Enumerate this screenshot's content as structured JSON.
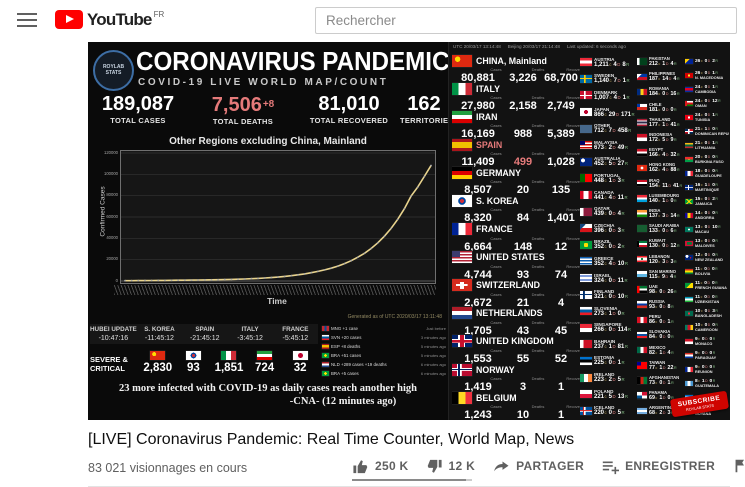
{
  "header": {
    "brand": "YouTube",
    "region": "FR",
    "search_placeholder": "Rechercher"
  },
  "dashboard": {
    "logo": "ROYLAB STATS",
    "title": "CORONAVIRUS PANDEMIC",
    "subtitle": "COVID-19 LIVE WORLD MAP/COUNT",
    "stats": [
      {
        "value": "189,087",
        "label": "TOTAL CASES"
      },
      {
        "value": "7,506",
        "delta": "+8",
        "label": "TOTAL DEATHS",
        "red": true
      },
      {
        "value": "81,010",
        "label": "TOTAL RECOVERED"
      },
      {
        "value": "162",
        "label": "TERRITORIES"
      }
    ],
    "generated": "Generated as of UTC 2020/03/17 13:11:48",
    "countdown": [
      {
        "name": "HUBEI UPDATE",
        "time": "-10:47:16"
      },
      {
        "name": "S. KOREA",
        "time": "-11:45:12"
      },
      {
        "name": "SPAIN",
        "time": "-21:45:12"
      },
      {
        "name": "ITALY",
        "time": "-3:45:12"
      },
      {
        "name": "FRANCE",
        "time": "-5:45:12"
      }
    ],
    "severe_label": "SEVERE & CRITICAL",
    "severe": [
      {
        "flag": "cn",
        "value": "2,830"
      },
      {
        "flag": "kr",
        "value": "93"
      },
      {
        "flag": "it",
        "value": "1,851"
      },
      {
        "flag": "ir",
        "value": "724"
      },
      {
        "flag": "jp",
        "value": "32"
      }
    ],
    "feed": [
      {
        "flag": "mn",
        "text": "MNG +1 case",
        "time": "Just before"
      },
      {
        "flag": "si",
        "text": "SVN +20 cases",
        "time": "3 minutes ago"
      },
      {
        "flag": "es",
        "text": "ESP +8 deaths",
        "time": "5 minutes ago"
      },
      {
        "flag": "br",
        "text": "BRA +51 cases",
        "time": "5 minutes ago"
      },
      {
        "flag": "nl",
        "text": "NLD +289 cases +19 deaths",
        "time": "6 minutes ago"
      },
      {
        "flag": "br",
        "text": "BRA +5 cases",
        "time": "6 minutes ago"
      }
    ],
    "ticker": [
      "23 more infected with COVID-19 as daily cases reach another high",
      "-CNA- (12 minutes ago)"
    ]
  },
  "panel": {
    "utc": "UTC 20/03/17 13:14:48",
    "beijing": "Beijing 20/03/17 21:14:48",
    "updated": "Last updated: 6 seconds ago",
    "headers": [
      "Cases",
      "Deaths",
      "Recovered"
    ],
    "major": [
      {
        "flag": "cn",
        "name": "CHINA, Mainland",
        "cases": "80,881",
        "deaths": "3,226",
        "recovered": "68,700"
      },
      {
        "flag": "it",
        "name": "ITALY",
        "cases": "27,980",
        "deaths": "2,158",
        "recovered": "2,749"
      },
      {
        "flag": "ir",
        "name": "IRAN",
        "cases": "16,169",
        "deaths": "988",
        "recovered": "5,389"
      },
      {
        "flag": "es",
        "name": "SPAIN",
        "cases": "11,409",
        "deaths": "499",
        "recovered": "1,028",
        "highlight": true
      },
      {
        "flag": "de",
        "name": "GERMANY",
        "cases": "8,507",
        "deaths": "20",
        "recovered": "135"
      },
      {
        "flag": "kr",
        "name": "S. KOREA",
        "cases": "8,320",
        "deaths": "84",
        "recovered": "1,401"
      },
      {
        "flag": "fr",
        "name": "FRANCE",
        "cases": "6,664",
        "deaths": "148",
        "recovered": "12"
      },
      {
        "flag": "us",
        "name": "UNITED STATES",
        "cases": "4,744",
        "deaths": "93",
        "recovered": "74"
      },
      {
        "flag": "ch",
        "name": "SWITZERLAND",
        "cases": "2,672",
        "deaths": "21",
        "recovered": "4"
      },
      {
        "flag": "nl",
        "name": "NETHERLANDS",
        "cases": "1,705",
        "deaths": "43",
        "recovered": "45"
      },
      {
        "flag": "gb",
        "name": "UNITED KINGDOM",
        "cases": "1,553",
        "deaths": "55",
        "recovered": "52"
      },
      {
        "flag": "no",
        "name": "NORWAY",
        "cases": "1,419",
        "deaths": "3",
        "recovered": "1"
      },
      {
        "flag": "be",
        "name": "BELGIUM",
        "cases": "1,243",
        "deaths": "10",
        "recovered": "1"
      }
    ],
    "medium": [
      {
        "flag": "at",
        "name": "AUSTRIA",
        "c": "1,211",
        "d": "4",
        "r": "8"
      },
      {
        "flag": "se",
        "name": "SWEDEN",
        "c": "1,140",
        "d": "7",
        "r": "1"
      },
      {
        "flag": "dk",
        "name": "DENMARK",
        "c": "1,007",
        "d": "4",
        "r": "1"
      },
      {
        "flag": "jp",
        "name": "JAPAN",
        "c": "866",
        "d": "29",
        "r": "171"
      },
      {
        "flag": "other",
        "name": "OTHER",
        "c": "712",
        "d": "7",
        "r": "458"
      },
      {
        "flag": "my",
        "name": "MALAYSIA",
        "c": "673",
        "d": "2",
        "r": "49"
      },
      {
        "flag": "au",
        "name": "AUSTRALIA",
        "c": "452",
        "d": "5",
        "r": "27"
      },
      {
        "flag": "pt",
        "name": "PORTUGAL",
        "c": "448",
        "d": "1",
        "r": "3"
      },
      {
        "flag": "ca",
        "name": "CANADA",
        "c": "441",
        "d": "4",
        "r": "11"
      },
      {
        "flag": "qa",
        "name": "QATAR",
        "c": "439",
        "d": "0",
        "r": "4"
      },
      {
        "flag": "cz",
        "name": "CZECHIA",
        "c": "396",
        "d": "0",
        "r": "3"
      },
      {
        "flag": "br",
        "name": "BRAZIL",
        "c": "352",
        "d": "0",
        "r": "2"
      },
      {
        "flag": "gr",
        "name": "GREECE",
        "c": "352",
        "d": "4",
        "r": "10"
      },
      {
        "flag": "il",
        "name": "ISRAEL",
        "c": "324",
        "d": "0",
        "r": "11"
      },
      {
        "flag": "fi",
        "name": "FINLAND",
        "c": "321",
        "d": "0",
        "r": "10"
      },
      {
        "flag": "si",
        "name": "SLOVENIA",
        "c": "273",
        "d": "1",
        "r": "0"
      },
      {
        "flag": "sg",
        "name": "SINGAPORE",
        "c": "266",
        "d": "0",
        "r": "114"
      },
      {
        "flag": "bh",
        "name": "BAHRAIN",
        "c": "237",
        "d": "1",
        "r": "81"
      },
      {
        "flag": "ee",
        "name": "ESTONIA",
        "c": "225",
        "d": "0",
        "r": "1"
      },
      {
        "flag": "ie",
        "name": "IRELAND",
        "c": "223",
        "d": "2",
        "r": "5"
      },
      {
        "flag": "pl",
        "name": "POLAND",
        "c": "221",
        "d": "5",
        "r": "13"
      },
      {
        "flag": "is",
        "name": "ICELAND",
        "c": "220",
        "d": "0",
        "r": "5"
      }
    ],
    "small": [
      {
        "flag": "pk",
        "name": "PAKISTAN",
        "c": "212",
        "d": "1",
        "r": "4"
      },
      {
        "flag": "ph",
        "name": "PHILIPPINES",
        "c": "187",
        "d": "14",
        "r": "4"
      },
      {
        "flag": "ro",
        "name": "ROMANIA",
        "c": "184",
        "d": "0",
        "r": "16"
      },
      {
        "flag": "cl",
        "name": "CHILE",
        "c": "181",
        "d": "0",
        "r": "0"
      },
      {
        "flag": "th",
        "name": "THAILAND",
        "c": "177",
        "d": "1",
        "r": "41"
      },
      {
        "flag": "id",
        "name": "INDONESIA",
        "c": "172",
        "d": "5",
        "r": "9"
      },
      {
        "flag": "eg",
        "name": "EGYPT",
        "c": "166",
        "d": "4",
        "r": "32"
      },
      {
        "flag": "hk",
        "name": "HONG KONG",
        "c": "162",
        "d": "4",
        "r": "88"
      },
      {
        "flag": "iq",
        "name": "IRAQ",
        "c": "154",
        "d": "11",
        "r": "41"
      },
      {
        "flag": "lu",
        "name": "LUXEMBOURG",
        "c": "140",
        "d": "1",
        "r": "0"
      },
      {
        "flag": "in",
        "name": "INDIA",
        "c": "137",
        "d": "3",
        "r": "14"
      },
      {
        "flag": "sa",
        "name": "SAUDI ARABIA",
        "c": "133",
        "d": "0",
        "r": "6"
      },
      {
        "flag": "kw",
        "name": "KUWAIT",
        "c": "130",
        "d": "0",
        "r": "12"
      },
      {
        "flag": "lb",
        "name": "LEBANON",
        "c": "120",
        "d": "3",
        "r": "3"
      },
      {
        "flag": "sm",
        "name": "SAN MARINO",
        "c": "115",
        "d": "9",
        "r": "4"
      },
      {
        "flag": "ae",
        "name": "UAE",
        "c": "98",
        "d": "0",
        "r": "26"
      },
      {
        "flag": "ru",
        "name": "RUSSIA",
        "c": "93",
        "d": "0",
        "r": "8"
      },
      {
        "flag": "pe",
        "name": "PERU",
        "c": "86",
        "d": "0",
        "r": "1"
      },
      {
        "flag": "sk",
        "name": "SLOVAKIA",
        "c": "84",
        "d": "0",
        "r": "0"
      },
      {
        "flag": "mx",
        "name": "MEXICO",
        "c": "82",
        "d": "1",
        "r": "4"
      },
      {
        "flag": "tw",
        "name": "TAIWAN",
        "c": "77",
        "d": "1",
        "r": "22"
      },
      {
        "flag": "af",
        "name": "AFGHANISTAN",
        "c": "73",
        "d": "0",
        "r": "1"
      },
      {
        "flag": "pa",
        "name": "PANAMA",
        "c": "69",
        "d": "1",
        "r": "0"
      },
      {
        "flag": "ar",
        "name": "ARGENTINA",
        "c": "68",
        "d": "2",
        "r": "3"
      }
    ],
    "tiny": [
      {
        "flag": "ba",
        "name": "",
        "c": "26",
        "d": "0",
        "r": "2"
      },
      {
        "flag": "mk",
        "name": "N. MACEDONIA",
        "c": "26",
        "d": "0",
        "r": "1"
      },
      {
        "flag": "kh",
        "name": "CAMBODIA",
        "c": "24",
        "d": "0",
        "r": "1"
      },
      {
        "flag": "om",
        "name": "OMAN",
        "c": "24",
        "d": "0",
        "r": "12"
      },
      {
        "flag": "tn",
        "name": "TUNISIA",
        "c": "24",
        "d": "0",
        "r": "1"
      },
      {
        "flag": "do",
        "name": "DOMINICAN REPUBLIC",
        "c": "21",
        "d": "1",
        "r": "0"
      },
      {
        "flag": "lt",
        "name": "LITHUANIA",
        "c": "21",
        "d": "0",
        "r": "1"
      },
      {
        "flag": "bf",
        "name": "BURKINA FASO",
        "c": "20",
        "d": "0",
        "r": "0"
      },
      {
        "flag": "gp",
        "name": "GUADELOUPE",
        "c": "18",
        "d": "0",
        "r": "0"
      },
      {
        "flag": "mq",
        "name": "MARTINIQUE",
        "c": "16",
        "d": "1",
        "r": "0"
      },
      {
        "flag": "jm",
        "name": "JAMAICA",
        "c": "15",
        "d": "0",
        "r": "2"
      },
      {
        "flag": "ad",
        "name": "ANDORRA",
        "c": "14",
        "d": "0",
        "r": "0"
      },
      {
        "flag": "mo",
        "name": "MACAU",
        "c": "13",
        "d": "0",
        "r": "10"
      },
      {
        "flag": "mv",
        "name": "MALDIVES",
        "c": "13",
        "d": "0",
        "r": "0"
      },
      {
        "flag": "nz",
        "name": "NEW ZEALAND",
        "c": "12",
        "d": "0",
        "r": "0"
      },
      {
        "flag": "bo",
        "name": "BOLIVIA",
        "c": "11",
        "d": "0",
        "r": "0"
      },
      {
        "flag": "gf",
        "name": "FRENCH GUIANA",
        "c": "11",
        "d": "0",
        "r": "0"
      },
      {
        "flag": "uz",
        "name": "UZBEKISTAN",
        "c": "11",
        "d": "0",
        "r": "0"
      },
      {
        "flag": "bd",
        "name": "BANGLADESH",
        "c": "10",
        "d": "0",
        "r": "3"
      },
      {
        "flag": "cm",
        "name": "CAMEROON",
        "c": "10",
        "d": "0",
        "r": "0"
      },
      {
        "flag": "mc",
        "name": "MONACO",
        "c": "9",
        "d": "0",
        "r": "0"
      },
      {
        "flag": "py",
        "name": "PARAGUAY",
        "c": "9",
        "d": "0",
        "r": "0"
      },
      {
        "flag": "re",
        "name": "REUNION",
        "c": "9",
        "d": "0",
        "r": "0"
      },
      {
        "flag": "gt",
        "name": "GUATEMALA",
        "c": "8",
        "d": "1",
        "r": "0"
      },
      {
        "flag": "hn",
        "name": "HONDURAS",
        "c": "",
        "d": "",
        "r": ""
      },
      {
        "flag": "gy",
        "name": "GUYANA",
        "c": "7",
        "d": "1",
        "r": "0"
      }
    ],
    "badge": [
      "SUBSCRIBE",
      "ROYLAB STATS"
    ]
  },
  "video_bottom": {
    "title": "[LIVE] Coronavirus Pandemic: Real Time Counter, World Map, News",
    "views": "83 021 visionnages en cours",
    "like": "250 K",
    "dislike": "12 K",
    "share": "PARTAGER",
    "save": "ENREGISTRER"
  },
  "chart_data": {
    "type": "line",
    "title": "Other Regions excluding China, Mainland",
    "xlabel": "Time",
    "ylabel": "Confirmed Cases",
    "ylim": [
      0,
      120000
    ],
    "yticks": [
      0,
      20000,
      40000,
      60000,
      80000,
      100000,
      120000
    ],
    "x_note": "daily date tick labels, rotated and illegible at this size",
    "values": [
      270,
      310,
      360,
      420,
      470,
      530,
      590,
      650,
      710,
      780,
      850,
      930,
      1010,
      1100,
      1200,
      1350,
      1500,
      1700,
      1900,
      2150,
      2450,
      2800,
      3200,
      3700,
      4300,
      5000,
      5800,
      6700,
      7800,
      9000,
      10400,
      12000,
      14000,
      16300,
      19000,
      22300,
      26000,
      30500,
      35800,
      42000,
      49300,
      57800,
      67800,
      79500,
      88000,
      98000,
      108200
    ],
    "line_color": "#e9d48d",
    "grid": true,
    "legend": false,
    "annotation": "Generated as of UTC 2020/03/17 13:11:48"
  }
}
